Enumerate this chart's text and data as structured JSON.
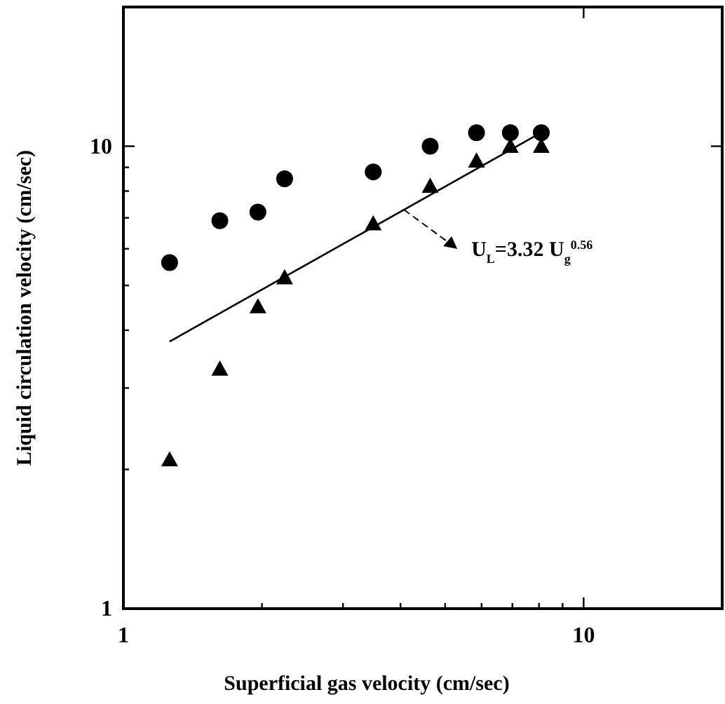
{
  "chart_data": {
    "type": "scatter",
    "xlabel": "Superficial gas velocity (cm/sec)",
    "ylabel": "Liquid circulation velocity (cm/sec)",
    "log": "xy",
    "xlim": [
      1,
      20
    ],
    "ylim": [
      1,
      20
    ],
    "xticks": [
      1,
      {
        "value": 2,
        "label": null
      },
      {
        "value": 3,
        "label": null
      },
      {
        "value": 4,
        "label": null
      },
      {
        "value": 5,
        "label": null
      },
      {
        "value": 6,
        "label": null
      },
      {
        "value": 7,
        "label": null
      },
      {
        "value": 8,
        "label": null
      },
      {
        "value": 9,
        "label": null
      },
      10
    ],
    "yticks": [
      1,
      {
        "value": 2,
        "label": null
      },
      {
        "value": 3,
        "label": null
      },
      {
        "value": 4,
        "label": null
      },
      {
        "value": 5,
        "label": null
      },
      {
        "value": 6,
        "label": null
      },
      {
        "value": 7,
        "label": null
      },
      {
        "value": 8,
        "label": null
      },
      {
        "value": 9,
        "label": null
      },
      10
    ],
    "grid": false,
    "series": [
      {
        "marker": "circle",
        "color": "#000000",
        "x": [
          1.26,
          1.62,
          1.96,
          2.24,
          3.49,
          4.64,
          5.85,
          6.93,
          8.09
        ],
        "values": [
          5.6,
          6.9,
          7.2,
          8.5,
          8.8,
          10.0,
          10.7,
          10.7,
          10.7
        ]
      },
      {
        "marker": "triangle",
        "color": "#000000",
        "x": [
          1.26,
          1.62,
          1.96,
          2.24,
          3.49,
          4.64,
          5.85,
          6.93,
          8.09
        ],
        "values": [
          2.1,
          3.3,
          4.5,
          5.2,
          6.8,
          8.2,
          9.3,
          10.0,
          10.0
        ]
      },
      {
        "type": "line",
        "marker": "none",
        "line_style": "solid",
        "color": "#000000",
        "x": [
          1.26,
          7.89
        ],
        "values": [
          3.78,
          10.56
        ]
      }
    ],
    "annotations": [
      {
        "text": "U$_{L}$=3.32 U$_{g}$$^{0.56}$",
        "x": 4.07,
        "y": 7.29
      }
    ]
  }
}
